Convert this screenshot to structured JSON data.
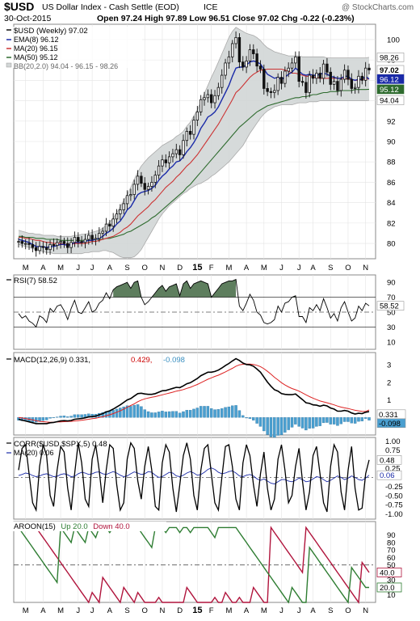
{
  "header": {
    "symbol": "$USD",
    "name": "US Dollar Index - Cash Settle (EOD)",
    "exchange": "ICE",
    "date": "30-Oct-2015",
    "quote": "Open 97.24  High 97.89  Low 96.51  Close 97.02  Chg -0.22 (-0.23%)",
    "quote_change_color": "#cc0000",
    "watermark": "@ StockCharts.com"
  },
  "colors": {
    "price_bar": "#111111",
    "ema8": "#1a2aa8",
    "ma20": "#cc3333",
    "ma50": "#2e6b2e",
    "bb_fill": "#d2d6d6",
    "rsi_fill": "#5e7e5e",
    "macd_line": "#000000",
    "macd_signal": "#dd2222",
    "histogram": "#4a9fd0",
    "corr_line": "#000000",
    "corr_ma": "#1a2aa8",
    "aroon_up": "#2e7d32",
    "aroon_down": "#b0143c",
    "axis_label": "#000000"
  },
  "x_axis": {
    "labels": [
      "M",
      "A",
      "M",
      "J",
      "J",
      "A",
      "S",
      "O",
      "N",
      "D",
      "15",
      "F",
      "M",
      "A",
      "M",
      "J",
      "J",
      "A",
      "S",
      "O",
      "N"
    ]
  },
  "legend": {
    "price": "$USD (Weekly) 97.02",
    "ema": "EMA(8) 96.12",
    "ma20": "MA(20) 96.15",
    "ma50": "MA(50) 95.12",
    "bb": "BB(20,2.0) 94.04 - 96.15 - 98.26",
    "rsi": "RSI(7) 58.52",
    "macd_main": "MACD(12,26,9) 0.331,",
    "macd_signal": "0.429,",
    "macd_hist": "-0.098",
    "corr": "CORR($USD,$SPX,5) 0.48",
    "corr_ma": "MA(20) 0.06",
    "aroon_prefix": "AROON(15)",
    "aroon_up": "Up 20.0",
    "aroon_down": "Down 40.0"
  },
  "chart_data": [
    {
      "type": "ohlc",
      "title": "$USD (Weekly) 97.02",
      "ylim": [
        78.5,
        101.5
      ],
      "yticks": [
        80,
        82,
        84,
        86,
        88,
        90,
        92,
        94,
        96,
        98,
        100
      ],
      "last_values": {
        "close": "97.02",
        "bb_upper": "98.26",
        "ema8": "96.12",
        "ma50": "95.12",
        "bb_lower": "94.04"
      },
      "close": [
        80.2,
        80.0,
        80.0,
        79.9,
        79.6,
        79.3,
        79.7,
        79.6,
        79.4,
        79.9,
        79.8,
        80.1,
        80.2,
        80.0,
        79.6,
        80.1,
        80.6,
        80.2,
        80.1,
        80.4,
        80.8,
        80.4,
        80.5,
        81.0,
        81.2,
        81.9,
        81.7,
        82.4,
        82.9,
        83.3,
        83.9,
        84.7,
        84.8,
        85.8,
        86.6,
        85.9,
        85.3,
        85.6,
        86.0,
        86.7,
        87.6,
        88.2,
        87.9,
        88.5,
        88.8,
        89.2,
        88.7,
        90.1,
        91.0,
        90.7,
        92.1,
        92.9,
        94.1,
        94.3,
        94.6,
        93.8,
        94.5,
        95.3,
        96.5,
        97.7,
        98.3,
        99.6,
        100.2,
        97.8,
        97.3,
        97.9,
        99.0,
        98.6,
        97.4,
        97.1,
        95.2,
        94.9,
        94.8,
        95.0,
        96.3,
        95.7,
        96.9,
        97.2,
        97.7,
        98.3,
        95.9,
        95.8,
        94.8,
        96.5,
        96.2,
        96.7,
        96.2,
        97.6,
        96.8,
        95.6,
        95.9,
        95.0,
        96.1,
        97.0,
        96.1,
        95.2,
        95.3,
        96.4,
        96.0,
        97.2,
        97.02
      ],
      "ema8": [
        80.4,
        80.3,
        80.2,
        80.1,
        79.9,
        79.7,
        79.7,
        79.7,
        79.6,
        79.7,
        79.7,
        79.8,
        79.9,
        79.9,
        79.8,
        79.9,
        80.1,
        80.1,
        80.1,
        80.2,
        80.3,
        80.3,
        80.4,
        80.5,
        80.7,
        81.0,
        81.2,
        81.5,
        81.9,
        82.2,
        82.7,
        83.3,
        83.6,
        84.2,
        84.8,
        85.0,
        85.1,
        85.2,
        85.4,
        85.7,
        86.2,
        86.6,
        86.9,
        87.3,
        87.6,
        88.0,
        88.1,
        88.5,
        89.0,
        89.4,
        89.9,
        90.5,
        91.3,
        91.8,
        92.4,
        92.6,
        92.9,
        93.4,
        94.1,
        94.8,
        95.5,
        96.4,
        97.2,
        97.3,
        97.3,
        97.5,
        97.8,
        97.9,
        97.8,
        97.6,
        97.1,
        96.6,
        96.4,
        96.2,
        96.3,
        96.1,
        96.3,
        96.6,
        96.8,
        97.2,
        96.9,
        96.6,
        96.5,
        96.6,
        96.5,
        96.5,
        96.6,
        96.7,
        96.6,
        96.4,
        96.3,
        96.2,
        96.2,
        96.4,
        96.4,
        96.1,
        96.0,
        96.1,
        96.1,
        96.4,
        96.12
      ],
      "ma20": [
        80.6,
        80.6,
        80.5,
        80.5,
        80.4,
        80.3,
        80.3,
        80.2,
        80.1,
        80.1,
        80.0,
        80.0,
        80.0,
        79.9,
        79.9,
        79.9,
        80.0,
        80.0,
        80.0,
        80.0,
        80.1,
        80.2,
        80.2,
        80.3,
        80.4,
        80.5,
        80.6,
        80.7,
        80.9,
        81.1,
        81.4,
        81.6,
        81.9,
        82.3,
        82.7,
        83.0,
        83.3,
        83.6,
        84.0,
        84.3,
        84.7,
        85.1,
        85.5,
        85.8,
        86.1,
        86.5,
        86.8,
        87.2,
        87.6,
        87.9,
        88.3,
        88.7,
        89.2,
        89.7,
        90.2,
        90.7,
        91.2,
        91.7,
        92.3,
        92.9,
        93.5,
        94.1,
        94.8,
        95.1,
        95.5,
        95.9,
        96.3,
        96.6,
        96.8,
        97.0,
        97.0,
        97.1,
        97.1,
        97.1,
        97.1,
        97.1,
        97.0,
        96.9,
        96.7,
        96.7,
        96.6,
        96.5,
        96.4,
        96.4,
        96.3,
        96.3,
        96.2,
        96.2,
        96.2,
        96.2,
        96.2,
        96.2,
        96.2,
        96.2,
        96.1,
        96.1,
        96.0,
        96.0,
        96.1,
        96.1,
        96.15
      ],
      "ma50": [
        80.7,
        80.7,
        80.6,
        80.6,
        80.6,
        80.5,
        80.5,
        80.5,
        80.4,
        80.4,
        80.4,
        80.4,
        80.3,
        80.3,
        80.3,
        80.3,
        80.3,
        80.3,
        80.3,
        80.3,
        80.3,
        80.3,
        80.4,
        80.4,
        80.4,
        80.5,
        80.5,
        80.6,
        80.7,
        80.8,
        80.9,
        81.1,
        81.2,
        81.4,
        81.6,
        81.8,
        82.0,
        82.2,
        82.5,
        82.7,
        83.0,
        83.3,
        83.6,
        83.9,
        84.2,
        84.5,
        84.8,
        85.1,
        85.5,
        85.8,
        86.2,
        86.6,
        87.0,
        87.4,
        87.8,
        88.2,
        88.6,
        89.0,
        89.4,
        89.8,
        90.2,
        90.6,
        91.0,
        91.4,
        91.7,
        92.0,
        92.3,
        92.6,
        92.9,
        93.1,
        93.3,
        93.5,
        93.6,
        93.7,
        93.8,
        93.9,
        94.0,
        94.1,
        94.2,
        94.3,
        94.3,
        94.4,
        94.4,
        94.5,
        94.6,
        94.6,
        94.7,
        94.8,
        94.8,
        94.9,
        94.9,
        94.9,
        95.0,
        95.0,
        95.0,
        95.0,
        95.1,
        95.1,
        95.1,
        95.1,
        95.12
      ],
      "bb_upper": [
        81.3,
        81.2,
        81.1,
        81.0,
        81.0,
        80.9,
        80.9,
        80.8,
        80.8,
        80.8,
        80.8,
        80.7,
        80.7,
        80.7,
        80.7,
        80.7,
        80.8,
        80.8,
        80.9,
        80.9,
        81.0,
        81.1,
        81.2,
        81.3,
        81.5,
        81.8,
        82.1,
        82.5,
        83.0,
        83.6,
        84.2,
        84.8,
        85.5,
        86.3,
        87.0,
        87.6,
        88.0,
        88.4,
        88.7,
        89.0,
        89.3,
        89.6,
        89.8,
        90.0,
        90.2,
        90.5,
        90.7,
        91.0,
        91.5,
        91.9,
        92.5,
        93.1,
        93.9,
        94.7,
        95.5,
        96.3,
        97.0,
        97.8,
        98.6,
        99.4,
        100.2,
        100.8,
        101.2,
        101.0,
        100.8,
        100.6,
        100.5,
        100.4,
        100.2,
        99.9,
        99.5,
        99.2,
        99.0,
        98.8,
        98.7,
        98.6,
        98.5,
        98.4,
        98.4,
        98.4,
        98.4,
        98.3,
        98.3,
        98.3,
        98.3,
        98.3,
        98.3,
        98.3,
        98.2,
        98.2,
        98.2,
        98.2,
        98.2,
        98.2,
        98.2,
        98.2,
        98.2,
        98.2,
        98.2,
        98.2,
        98.26
      ],
      "bb_lower": [
        79.9,
        79.8,
        79.7,
        79.6,
        79.5,
        79.4,
        79.3,
        79.2,
        79.1,
        79.1,
        79.0,
        79.0,
        79.0,
        79.0,
        79.0,
        79.0,
        79.0,
        79.0,
        79.0,
        79.1,
        79.1,
        79.2,
        79.2,
        79.2,
        79.3,
        79.3,
        79.2,
        79.1,
        78.9,
        78.7,
        78.6,
        78.6,
        78.6,
        78.7,
        79.0,
        79.4,
        80.0,
        80.6,
        81.2,
        81.8,
        82.4,
        82.9,
        83.3,
        83.7,
        84.0,
        84.3,
        84.6,
        84.9,
        85.1,
        85.4,
        85.6,
        85.8,
        85.9,
        86.1,
        86.3,
        86.6,
        86.8,
        87.1,
        87.4,
        87.7,
        88.0,
        88.4,
        88.8,
        89.2,
        89.6,
        90.2,
        90.8,
        91.3,
        91.8,
        92.3,
        92.7,
        93.0,
        93.2,
        93.4,
        93.5,
        93.6,
        93.6,
        93.6,
        93.6,
        93.7,
        93.8,
        93.8,
        93.8,
        93.9,
        93.9,
        93.9,
        94.0,
        94.0,
        94.0,
        94.0,
        94.0,
        94.0,
        94.0,
        94.0,
        94.0,
        94.0,
        94.0,
        94.0,
        94.0,
        94.0,
        94.04
      ]
    },
    {
      "type": "line",
      "title": "RSI(7) 58.52",
      "ylim": [
        0,
        100
      ],
      "yticks": [
        10,
        30,
        50,
        70,
        90
      ],
      "reference_lines": [
        30,
        50,
        70
      ],
      "last_value": "58.52",
      "values": [
        48,
        42,
        45,
        38,
        35,
        30,
        45,
        42,
        36,
        55,
        50,
        58,
        60,
        52,
        40,
        55,
        66,
        50,
        48,
        56,
        64,
        50,
        53,
        62,
        66,
        76,
        68,
        80,
        84,
        86,
        88,
        90,
        82,
        90,
        92,
        70,
        60,
        64,
        70,
        76,
        82,
        86,
        78,
        84,
        86,
        88,
        72,
        88,
        92,
        82,
        88,
        90,
        92,
        90,
        88,
        70,
        76,
        82,
        88,
        90,
        92,
        92,
        94,
        58,
        52,
        62,
        74,
        66,
        50,
        46,
        36,
        34,
        36,
        40,
        58,
        50,
        62,
        64,
        70,
        72,
        44,
        44,
        36,
        56,
        52,
        60,
        52,
        68,
        56,
        42,
        48,
        38,
        56,
        64,
        50,
        38,
        42,
        58,
        52,
        62,
        58.52
      ]
    },
    {
      "type": "line",
      "title": "MACD(12,26,9) 0.331, 0.429, -0.098",
      "ylim": [
        -1.0,
        3.7
      ],
      "yticks": [
        1,
        2,
        3
      ],
      "last_values": [
        "0.331",
        "-0.098"
      ],
      "macd": [
        -0.1,
        -0.15,
        -0.2,
        -0.25,
        -0.3,
        -0.35,
        -0.35,
        -0.35,
        -0.35,
        -0.3,
        -0.28,
        -0.24,
        -0.2,
        -0.18,
        -0.2,
        -0.17,
        -0.1,
        -0.08,
        -0.06,
        -0.02,
        0.03,
        0.05,
        0.08,
        0.15,
        0.22,
        0.32,
        0.38,
        0.48,
        0.6,
        0.72,
        0.86,
        1.0,
        1.08,
        1.22,
        1.36,
        1.38,
        1.34,
        1.32,
        1.32,
        1.36,
        1.44,
        1.52,
        1.54,
        1.6,
        1.66,
        1.72,
        1.7,
        1.8,
        1.92,
        1.98,
        2.1,
        2.22,
        2.38,
        2.48,
        2.58,
        2.58,
        2.62,
        2.7,
        2.82,
        2.96,
        3.08,
        3.22,
        3.35,
        3.25,
        3.1,
        3.02,
        3.0,
        2.92,
        2.76,
        2.58,
        2.3,
        2.02,
        1.78,
        1.58,
        1.5,
        1.36,
        1.32,
        1.3,
        1.3,
        1.34,
        1.18,
        1.02,
        0.84,
        0.8,
        0.72,
        0.7,
        0.64,
        0.7,
        0.66,
        0.54,
        0.48,
        0.36,
        0.36,
        0.4,
        0.36,
        0.26,
        0.2,
        0.24,
        0.22,
        0.3,
        0.331
      ],
      "signal": [
        0.0,
        -0.03,
        -0.07,
        -0.1,
        -0.14,
        -0.18,
        -0.22,
        -0.24,
        -0.26,
        -0.27,
        -0.27,
        -0.26,
        -0.25,
        -0.24,
        -0.23,
        -0.22,
        -0.2,
        -0.18,
        -0.16,
        -0.13,
        -0.1,
        -0.07,
        -0.04,
        0.0,
        0.04,
        0.1,
        0.15,
        0.22,
        0.3,
        0.38,
        0.48,
        0.58,
        0.68,
        0.78,
        0.9,
        0.99,
        1.06,
        1.11,
        1.15,
        1.19,
        1.24,
        1.29,
        1.34,
        1.39,
        1.44,
        1.5,
        1.54,
        1.59,
        1.66,
        1.72,
        1.8,
        1.88,
        1.98,
        2.08,
        2.18,
        2.26,
        2.34,
        2.41,
        2.5,
        2.6,
        2.7,
        2.8,
        2.92,
        3.0,
        3.03,
        3.04,
        3.04,
        3.02,
        2.97,
        2.9,
        2.78,
        2.63,
        2.47,
        2.29,
        2.14,
        1.98,
        1.85,
        1.74,
        1.65,
        1.58,
        1.5,
        1.4,
        1.29,
        1.19,
        1.1,
        1.02,
        0.94,
        0.89,
        0.84,
        0.78,
        0.72,
        0.65,
        0.59,
        0.55,
        0.51,
        0.46,
        0.41,
        0.38,
        0.35,
        0.34,
        0.429
      ]
    },
    {
      "type": "line",
      "title": "CORR($USD,$SPX,5) 0.48",
      "ylim": [
        -1.15,
        1.1
      ],
      "yticks": [
        -1.0,
        -0.75,
        -0.5,
        -0.25,
        0.25,
        0.5,
        0.75,
        1.0
      ],
      "last_values": [
        "0.48",
        "0.06"
      ],
      "corr": [
        0.2,
        0.8,
        0.9,
        0.1,
        -0.7,
        -0.9,
        0.3,
        0.9,
        0.6,
        -0.5,
        -0.8,
        0.2,
        0.85,
        0.7,
        -0.3,
        -0.9,
        0.1,
        0.95,
        0.4,
        -0.6,
        -0.8,
        0.5,
        0.9,
        0.2,
        -0.7,
        0.2,
        0.9,
        0.8,
        -0.2,
        -0.9,
        -0.7,
        0.5,
        0.95,
        0.8,
        -0.1,
        -0.6,
        0.3,
        0.85,
        0.2,
        -0.8,
        -0.9,
        0.4,
        0.9,
        0.7,
        -0.3,
        -0.95,
        -0.2,
        0.6,
        0.95,
        0.5,
        -0.5,
        -0.9,
        0.2,
        0.8,
        0.9,
        0.1,
        -0.7,
        -0.9,
        0.0,
        0.85,
        0.9,
        0.3,
        -0.6,
        -0.9,
        0.4,
        0.9,
        0.6,
        -0.2,
        -0.8,
        0.1,
        0.7,
        -0.3,
        -0.9,
        -0.6,
        0.5,
        0.9,
        0.2,
        -0.7,
        -0.5,
        0.3,
        0.8,
        -0.1,
        -0.9,
        -0.4,
        0.6,
        0.85,
        0.1,
        -0.7,
        -0.95,
        0.3,
        0.9,
        0.7,
        -0.4,
        -0.9,
        0.2,
        0.85,
        -0.3,
        -0.9,
        -0.85,
        0.1,
        0.48
      ],
      "ma20": [
        0.05,
        0.08,
        0.12,
        0.1,
        0.05,
        0.02,
        0.04,
        0.08,
        0.1,
        0.06,
        0.02,
        0.03,
        0.08,
        0.1,
        0.07,
        0.02,
        0.03,
        0.1,
        0.14,
        0.12,
        0.08,
        0.1,
        0.14,
        0.15,
        0.1,
        0.08,
        0.12,
        0.16,
        0.12,
        0.06,
        0.02,
        0.04,
        0.1,
        0.15,
        0.12,
        0.08,
        0.1,
        0.16,
        0.14,
        0.06,
        0.0,
        0.02,
        0.08,
        0.14,
        0.12,
        0.04,
        0.02,
        0.06,
        0.12,
        0.16,
        0.12,
        0.06,
        0.08,
        0.14,
        0.22,
        0.26,
        0.22,
        0.14,
        0.1,
        0.12,
        0.16,
        0.18,
        0.12,
        0.04,
        0.02,
        0.06,
        0.08,
        0.04,
        -0.04,
        -0.08,
        -0.04,
        -0.1,
        -0.16,
        -0.18,
        -0.12,
        -0.06,
        -0.06,
        -0.1,
        -0.12,
        -0.08,
        -0.02,
        -0.06,
        -0.12,
        -0.1,
        -0.04,
        0.02,
        0.0,
        -0.06,
        -0.12,
        -0.08,
        -0.02,
        0.04,
        0.0,
        -0.06,
        -0.02,
        0.04,
        0.0,
        -0.06,
        -0.08,
        -0.02,
        0.06
      ]
    },
    {
      "type": "line",
      "title": "AROON(15) Up 20.0 Down 40.0",
      "ylim": [
        0,
        108
      ],
      "yticks": [
        10,
        20,
        30,
        40,
        50,
        60,
        70,
        80,
        90
      ],
      "last_values": [
        "40.0",
        "20.0"
      ],
      "aroon_up": [],
      "aroon_down": []
    }
  ]
}
